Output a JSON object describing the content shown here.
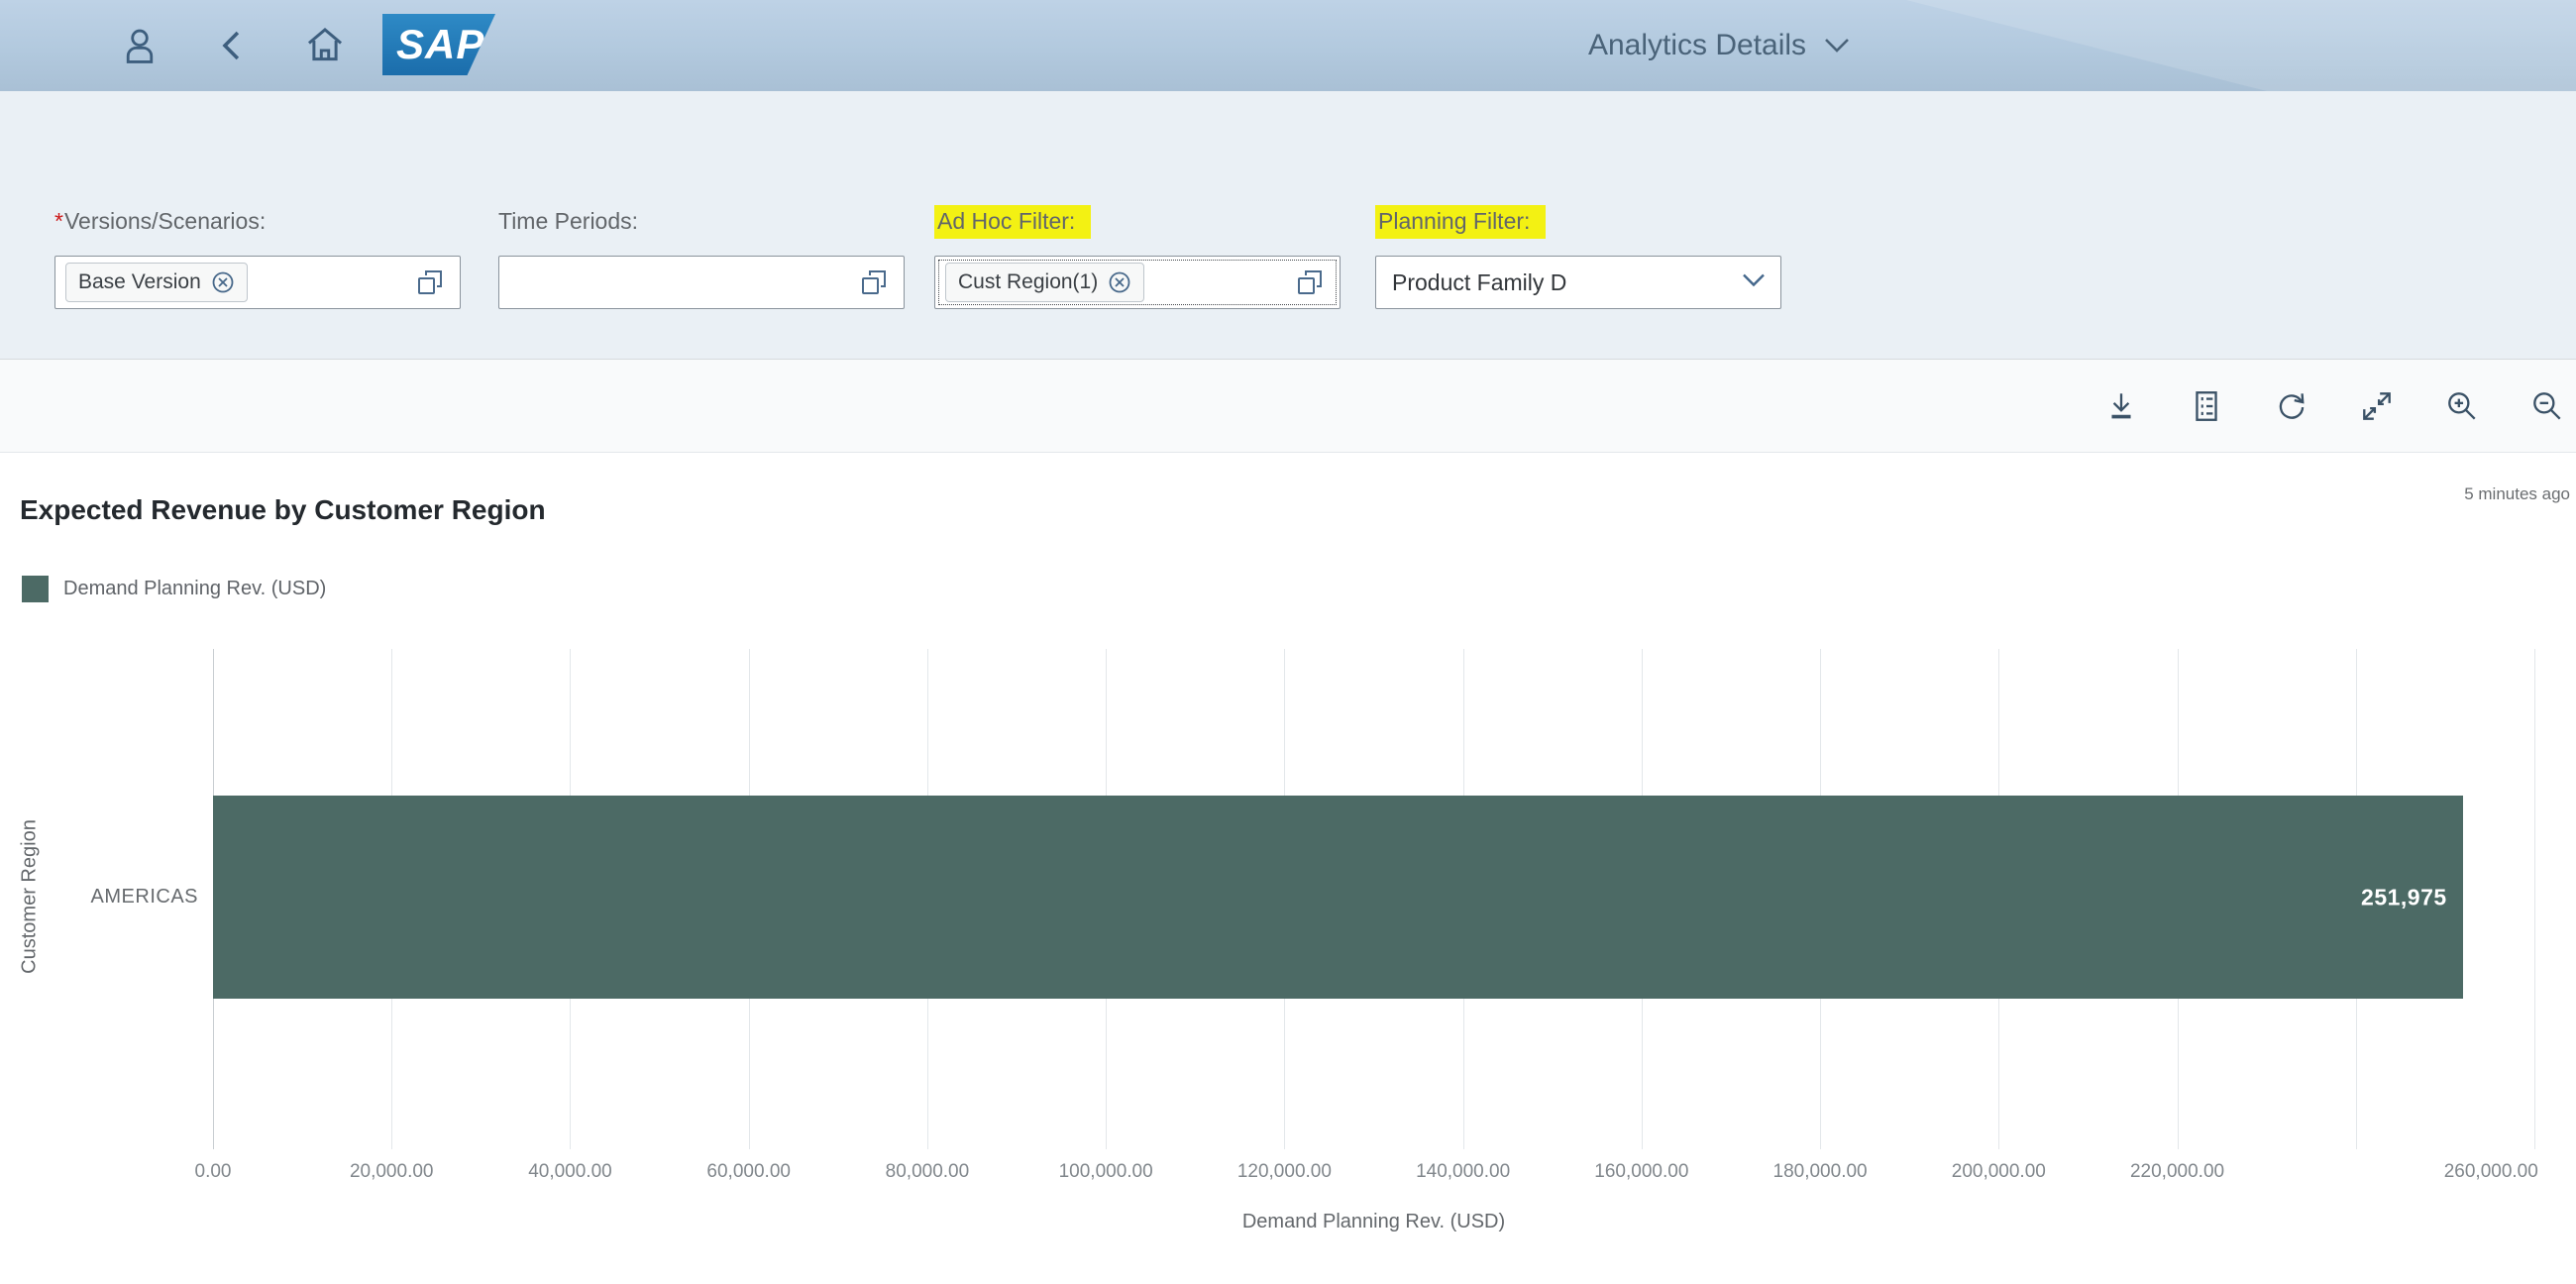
{
  "header": {
    "title": "Analytics Details",
    "sap_logo_text": "SAP"
  },
  "filters": [
    {
      "label": "Versions/Scenarios:",
      "required_marker": "*",
      "token": "Base Version",
      "highlighted": false
    },
    {
      "label": "Time Periods:",
      "token": "",
      "highlighted": false
    },
    {
      "label": "Ad Hoc Filter:",
      "token": "Cust Region(1)",
      "highlighted": true
    },
    {
      "label": "Planning Filter:",
      "value": "Product Family D",
      "highlighted": true
    }
  ],
  "toolbar": {
    "icons": [
      "download-icon",
      "table-view-icon",
      "refresh-icon",
      "expand-icon",
      "zoom-in-icon",
      "zoom-out-icon"
    ]
  },
  "chart": {
    "title": "Expected Revenue by Customer Region",
    "timestamp": "5 minutes ago",
    "legend_label": "Demand Planning Rev. (USD)"
  },
  "chart_data": {
    "type": "bar",
    "orientation": "horizontal",
    "title": "Expected Revenue by Customer Region",
    "categories": [
      "AMERICAS"
    ],
    "series": [
      {
        "name": "Demand Planning Rev. (USD)",
        "values": [
          251975
        ],
        "value_labels": [
          "251,975"
        ],
        "color": "#4c6a65"
      }
    ],
    "xlabel": "Demand Planning Rev. (USD)",
    "ylabel": "Customer Region",
    "xlim": [
      0,
      260000
    ],
    "x_tick_interval": 20000,
    "x_tick_labels": [
      "0.00",
      "20,000.00",
      "40,000.00",
      "60,000.00",
      "80,000.00",
      "100,000.00",
      "120,000.00",
      "140,000.00",
      "160,000.00",
      "180,000.00",
      "200,000.00",
      "220,000.00",
      null,
      "260,000.00"
    ],
    "grid": true,
    "legend_position": "top-left"
  },
  "colors": {
    "bar": "#4c6a65",
    "highlight": "#f3f113",
    "header_bg": "#b0c8de",
    "sap_blue": "#1f78b5"
  }
}
